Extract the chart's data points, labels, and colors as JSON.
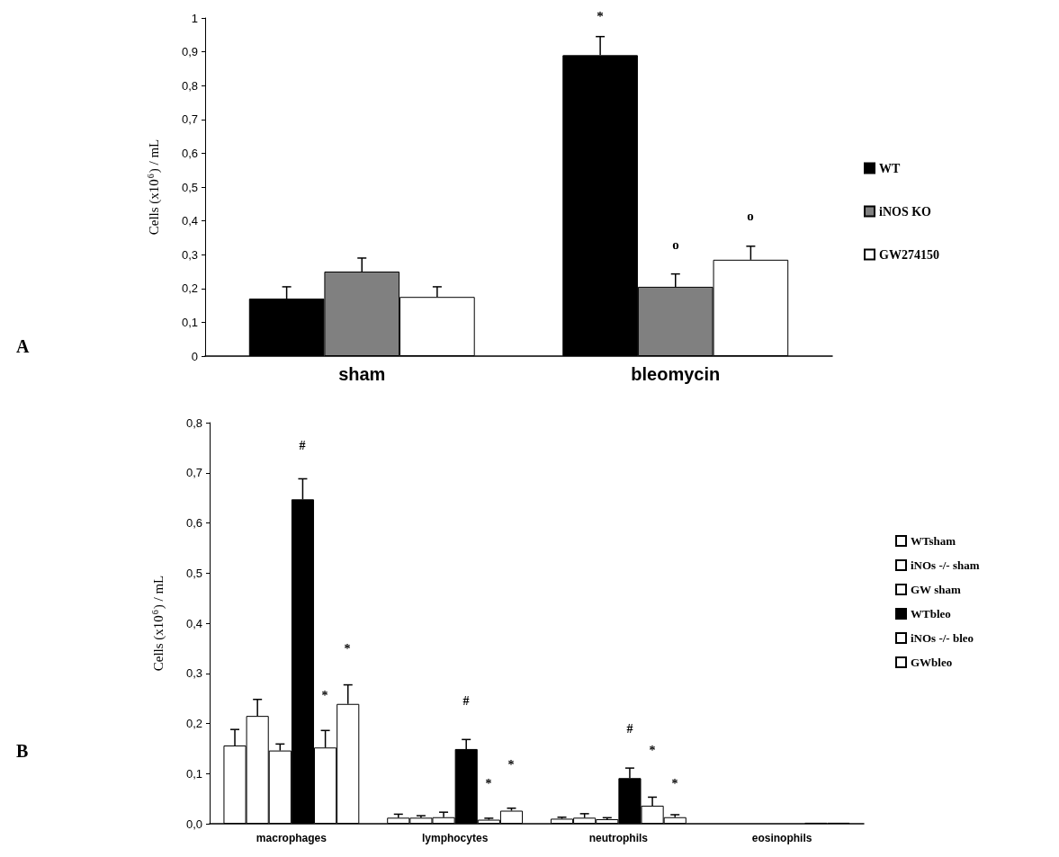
{
  "chart_data": [
    {
      "type": "bar",
      "categories": [
        "sham",
        "bleomycin"
      ],
      "ylabel": "Cells (x10$^{6}$) / mL",
      "series": [
        {
          "name": "WT",
          "color": "#000000",
          "values": [
            0.17,
            0.89
          ],
          "errors": [
            [
              0.17,
              0.205
            ],
            [
              0.89,
              0.945
            ]
          ]
        },
        {
          "name": "iNOS KO",
          "color": "#808080",
          "values": [
            0.25,
            0.205
          ],
          "errors": [
            [
              0.25,
              0.29
            ],
            [
              0.205,
              0.243
            ]
          ]
        },
        {
          "name": "GW274150",
          "color": "#ffffff",
          "values": [
            0.175,
            0.285
          ],
          "errors": [
            [
              0.175,
              0.205
            ],
            [
              0.285,
              0.325
            ]
          ]
        }
      ],
      "ylim": [
        0,
        1
      ],
      "yticks": [
        0,
        {
          "value": 0.1,
          "label": "0,1"
        },
        {
          "value": 0.2,
          "label": "0,2"
        },
        {
          "value": 0.3,
          "label": "0,3"
        },
        {
          "value": 0.4,
          "label": "0,4"
        },
        {
          "value": 0.5,
          "label": "0,5"
        },
        {
          "value": 0.6,
          "label": "0,6"
        },
        {
          "value": 0.7,
          "label": "0,7"
        },
        {
          "value": 0.8,
          "label": "0,8"
        },
        {
          "value": 0.9,
          "label": "0,9"
        },
        1
      ],
      "legend": "right",
      "grid": false,
      "annotations": [
        "A",
        "*",
        "o",
        "o"
      ]
    },
    {
      "type": "bar",
      "categories": [
        "macrophages",
        "lymphocytes",
        "neutrophils",
        "eosinophils"
      ],
      "ylabel": "Cells (x10$^{6}$) / mL",
      "series": [
        {
          "name": "WTsham",
          "color": "#ffffff",
          "values": [
            0.156,
            0.012,
            0.01,
            null
          ],
          "errors": [
            [
              0.156,
              0.188
            ],
            [
              0.012,
              0.019
            ],
            [
              0.01,
              0.013
            ],
            null
          ]
        },
        {
          "name": "iNOs -/- sham",
          "color": "#ffffff",
          "values": [
            0.215,
            0.012,
            0.012,
            null
          ],
          "errors": [
            [
              0.215,
              0.248
            ],
            [
              0.012,
              0.016
            ],
            [
              0.012,
              0.02
            ],
            null
          ]
        },
        {
          "name": "GW sham",
          "color": "#ffffff",
          "values": [
            0.146,
            0.013,
            0.009,
            null
          ],
          "errors": [
            [
              0.146,
              0.159
            ],
            [
              0.013,
              0.023
            ],
            [
              0.009,
              0.012
            ],
            null
          ]
        },
        {
          "name": "WTbleo",
          "color": "#000000",
          "values": [
            0.647,
            0.149,
            0.091,
            null
          ],
          "errors": [
            [
              0.647,
              0.688
            ],
            [
              0.149,
              0.168
            ],
            [
              0.091,
              0.111
            ],
            null
          ]
        },
        {
          "name": "iNOs -/- bleo",
          "color": "#ffffff",
          "values": [
            0.152,
            0.008,
            0.036,
            0.002
          ],
          "errors": [
            [
              0.152,
              0.186
            ],
            [
              0.008,
              0.011
            ],
            [
              0.036,
              0.053
            ],
            null
          ]
        },
        {
          "name": "GWbleo",
          "color": "#ffffff",
          "values": [
            0.239,
            0.026,
            0.013,
            0.002
          ],
          "errors": [
            [
              0.239,
              0.277
            ],
            [
              0.026,
              0.031
            ],
            [
              0.013,
              0.018
            ],
            null
          ]
        }
      ],
      "ylim": [
        0,
        0.8
      ],
      "yticks": [
        {
          "value": 0,
          "label": "0,0"
        },
        {
          "value": 0.1,
          "label": "0,1"
        },
        {
          "value": 0.2,
          "label": "0,2"
        },
        {
          "value": 0.3,
          "label": "0,3"
        },
        {
          "value": 0.4,
          "label": "0,4"
        },
        {
          "value": 0.5,
          "label": "0,5"
        },
        {
          "value": 0.6,
          "label": "0,6"
        },
        {
          "value": 0.7,
          "label": "0,7"
        },
        {
          "value": 0.8,
          "label": "0,8"
        }
      ],
      "legend": "right",
      "grid": false,
      "annotations": [
        "B",
        "#",
        "*",
        "*",
        "#",
        "*",
        "*",
        "#",
        "*",
        "*"
      ]
    }
  ]
}
